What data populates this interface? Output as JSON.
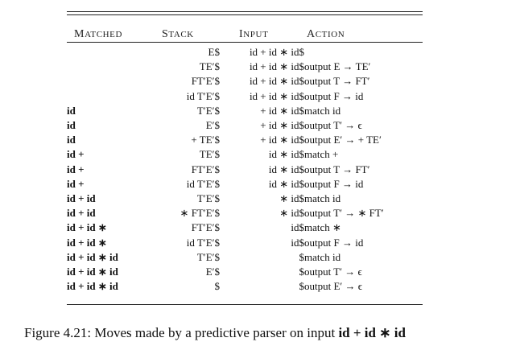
{
  "table": {
    "headers": {
      "matched": "Matched",
      "stack": "Stack",
      "input": "Input",
      "action": "Action"
    },
    "rows": [
      {
        "matched": "",
        "stack": "E$",
        "input": "id + id ∗ id$",
        "action": ""
      },
      {
        "matched": "",
        "stack": "TE′$",
        "input": "id + id ∗ id$",
        "action": "output E → TE′"
      },
      {
        "matched": "",
        "stack": "FT′E′$",
        "input": "id + id ∗ id$",
        "action": "output T → FT′"
      },
      {
        "matched": "",
        "stack": "id T′E′$",
        "input": "id + id ∗ id$",
        "action": "output F → id"
      },
      {
        "matched": "id",
        "stack": "T′E′$",
        "input": "+ id ∗ id$",
        "action": "match id"
      },
      {
        "matched": "id",
        "stack": "E′$",
        "input": "+ id ∗ id$",
        "action": "output T′ → ϵ"
      },
      {
        "matched": "id",
        "stack": "+ TE′$",
        "input": "+ id ∗ id$",
        "action": "output E′ → + TE′"
      },
      {
        "matched": "id +",
        "stack": "TE′$",
        "input": "id ∗ id$",
        "action": "match +"
      },
      {
        "matched": "id +",
        "stack": "FT′E′$",
        "input": "id ∗ id$",
        "action": "output T → FT′"
      },
      {
        "matched": "id +",
        "stack": "id T′E′$",
        "input": "id ∗ id$",
        "action": "output F → id"
      },
      {
        "matched": "id + id",
        "stack": "T′E′$",
        "input": "∗ id$",
        "action": "match id"
      },
      {
        "matched": "id + id",
        "stack": "∗ FT′E′$",
        "input": "∗ id$",
        "action": "output T′ → ∗ FT′"
      },
      {
        "matched": "id + id ∗",
        "stack": "FT′E′$",
        "input": "id$",
        "action": "match ∗"
      },
      {
        "matched": "id + id ∗",
        "stack": "id T′E′$",
        "input": "id$",
        "action": "output F → id"
      },
      {
        "matched": "id + id ∗ id",
        "stack": "T′E′$",
        "input": "$",
        "action": "match id"
      },
      {
        "matched": "id + id ∗ id",
        "stack": "E′$",
        "input": "$",
        "action": "output T′ → ϵ"
      },
      {
        "matched": "id + id ∗ id",
        "stack": "$",
        "input": "$",
        "action": "output E′ → ϵ"
      }
    ]
  },
  "caption": {
    "prefix": "Figure 4.21: Moves made by a predictive parser on input ",
    "expression": "id + id ∗ id"
  }
}
